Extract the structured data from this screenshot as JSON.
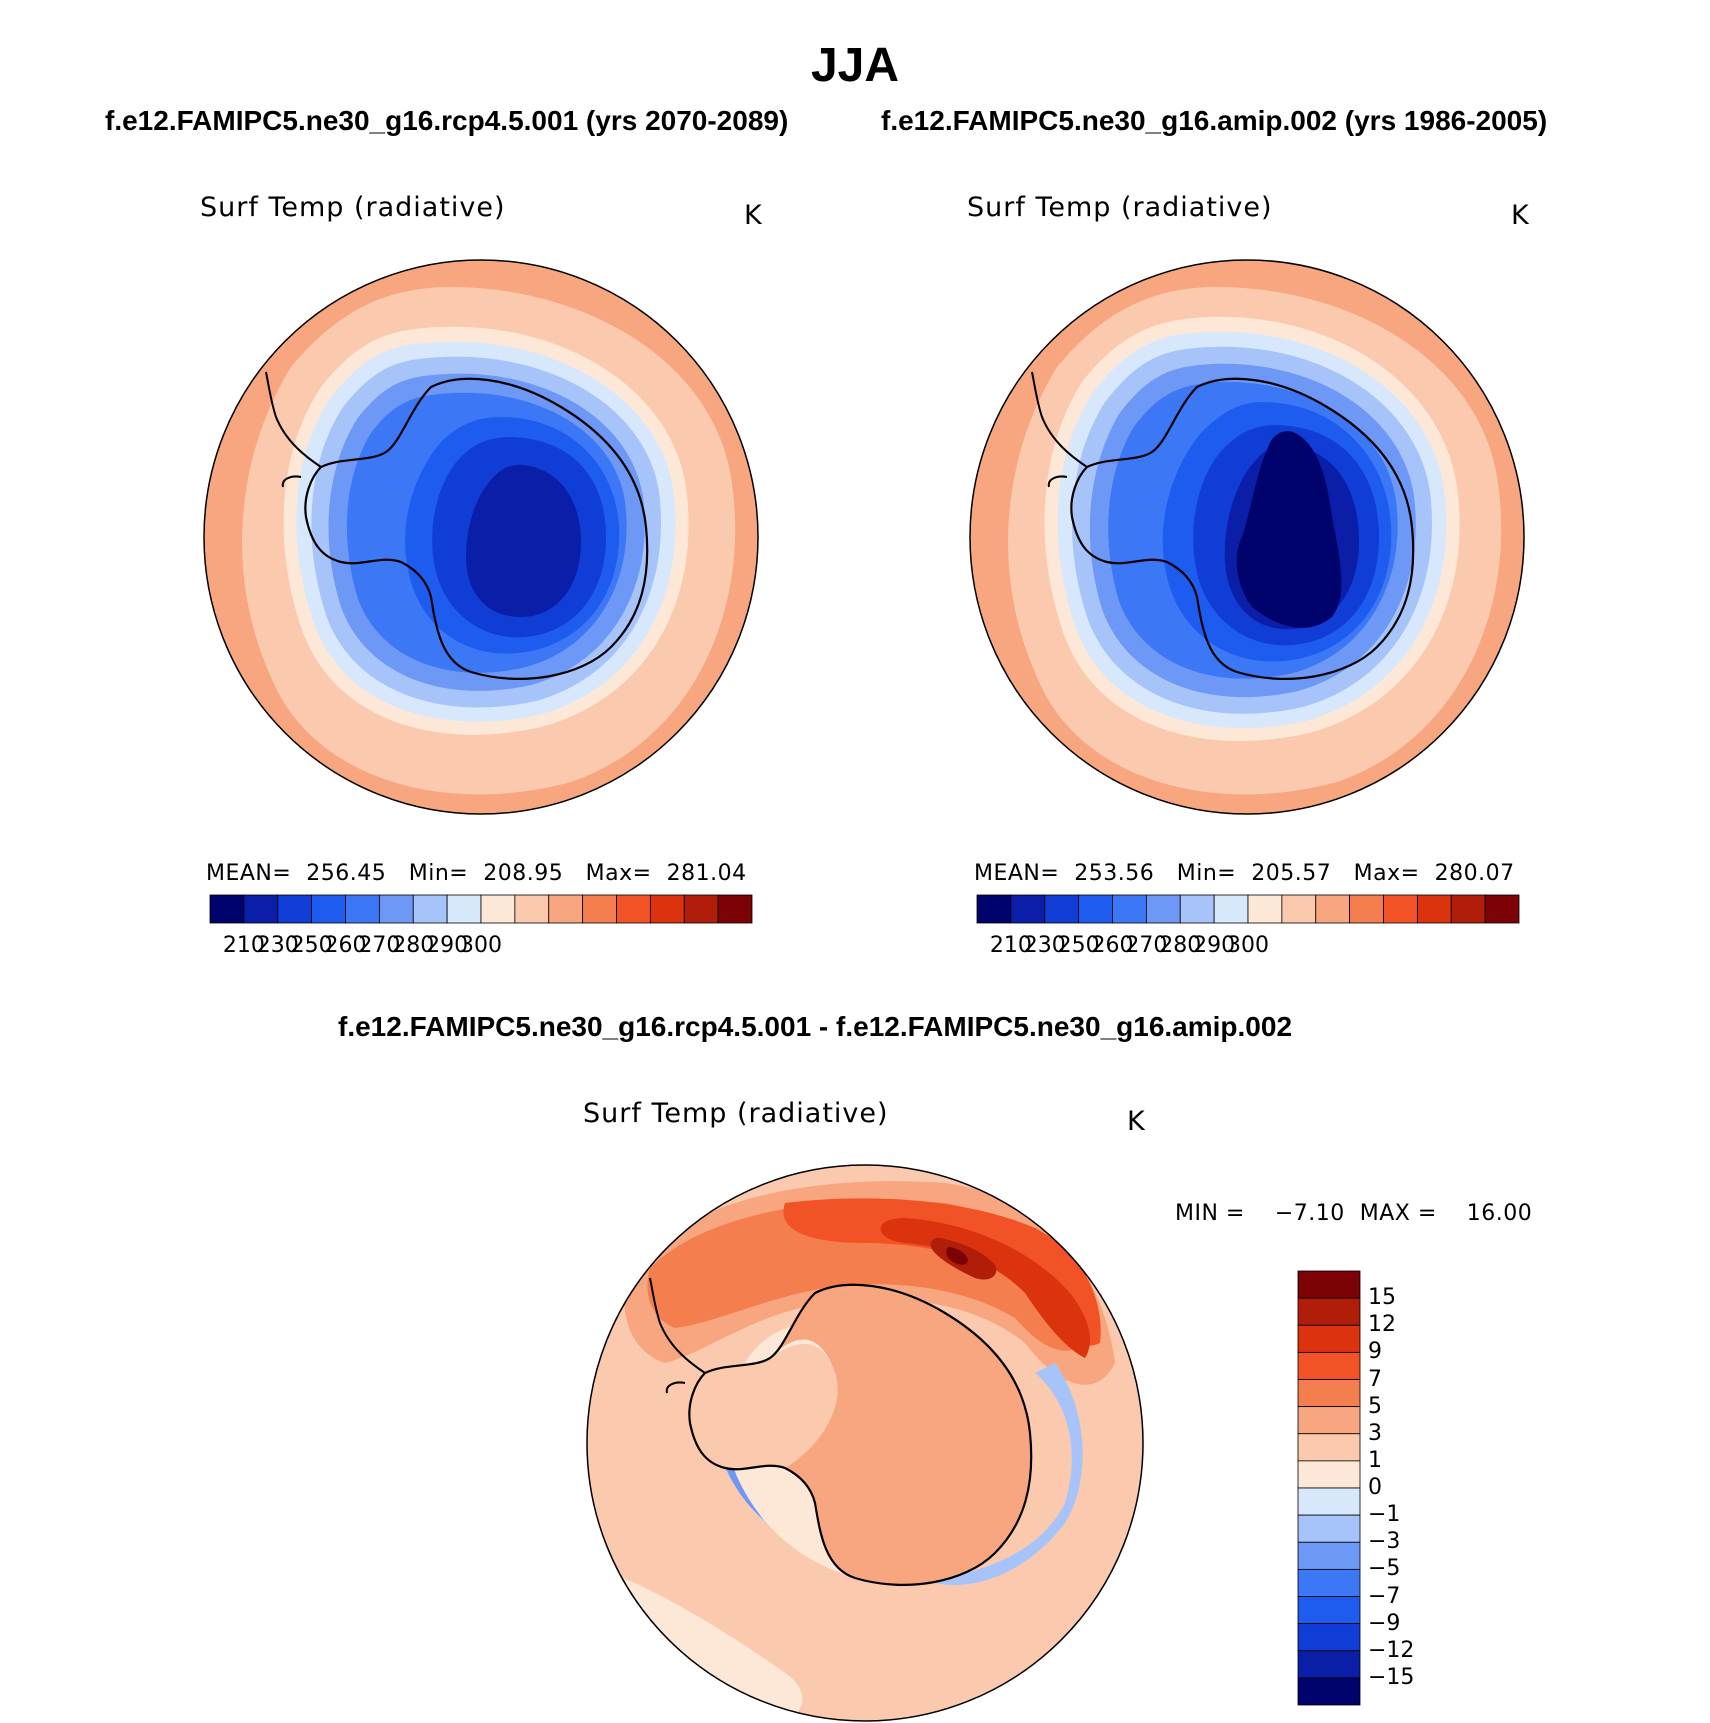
{
  "figure": {
    "season": "JJA",
    "case_label": "f.e12.FAMIPC5.ne30_g16.rcp4.5.001 (yrs 2070-2089)",
    "control_label": "f.e12.FAMIPC5.ne30_g16.amip.002 (yrs 1986-2005)",
    "diff_label": "f.e12.FAMIPC5.ne30_g16.rcp4.5.001 - f.e12.FAMIPC5.ne30_g16.amip.002"
  },
  "panels": [
    {
      "variable": "Surf Temp (radiative)",
      "units": "K",
      "stats": "MEAN=  256.45   Min=  208.95   Max=  281.04"
    },
    {
      "variable": "Surf Temp (radiative)",
      "units": "K",
      "stats": "MEAN=  253.56   Min=  205.57   Max=  280.07"
    }
  ],
  "diff_panel": {
    "variable": "Surf Temp (radiative)",
    "units": "K",
    "stats": "MIN =    −7.10  MAX =    16.00"
  },
  "colorbar_abs": {
    "colors": [
      "#00036b",
      "#0a1ea8",
      "#0f3dd6",
      "#1e5cf0",
      "#3c78f5",
      "#6e98f5",
      "#a6c4fa",
      "#d7e8fc",
      "#fde8d7",
      "#fbc9ad",
      "#f7a67f",
      "#f57e4f",
      "#f25326",
      "#dc330f",
      "#b01e0a",
      "#7d0206"
    ],
    "tick_labels": [
      "210",
      "230",
      "250",
      "260",
      "270",
      "280",
      "290",
      "300"
    ]
  },
  "colorbar_diff": {
    "colors": [
      "#7d0206",
      "#b01e0a",
      "#dc330f",
      "#f25326",
      "#f57e4f",
      "#f7a67f",
      "#fbc9ad",
      "#fde8d7",
      "#d7e8fc",
      "#a6c4fa",
      "#6e98f5",
      "#3c78f5",
      "#1e5cf0",
      "#0f3dd6",
      "#0a1ea8",
      "#00036b"
    ],
    "tick_labels": [
      "15",
      "12",
      "9",
      "7",
      "5",
      "3",
      "1",
      "0",
      "−1",
      "−3",
      "−5",
      "−7",
      "−9",
      "−12",
      "−15"
    ]
  }
}
